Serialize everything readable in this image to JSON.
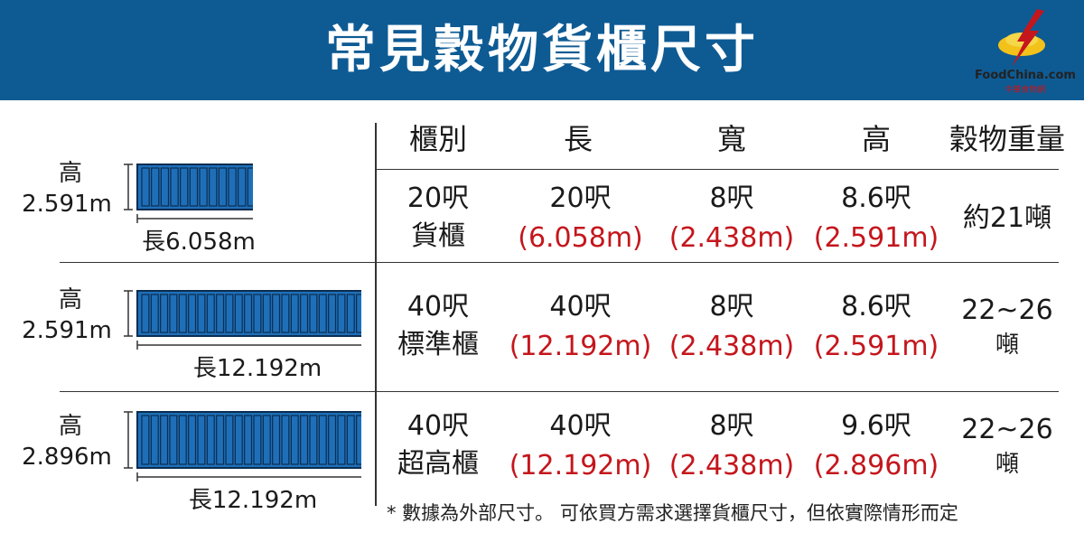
{
  "title": "常見穀物貨櫃尺寸",
  "logo": {
    "text": "FoodChina.com",
    "sub": "中華食物網",
    "icon": "lightning-logo-icon"
  },
  "colors": {
    "header_bg": "#0e5b94",
    "container_fill": "#1f6fb8",
    "container_stroke": "#0b2d50",
    "accent_red": "#c4161c"
  },
  "headers": {
    "type": "櫃別",
    "length": "長",
    "width": "寬",
    "height": "高",
    "weight": "穀物重量"
  },
  "rows": [
    {
      "type_line1": "20呎",
      "type_line2": "貨櫃",
      "length": "20呎",
      "length_m": "(6.058m)",
      "width": "8呎",
      "width_m": "(2.438m)",
      "height": "8.6呎",
      "height_m": "(2.591m)",
      "weight_line1": "約21噸",
      "weight_line2": "",
      "diagram": {
        "height_label": "高",
        "height_value": "2.591m",
        "length_label": "長6.058m",
        "slats": 12
      }
    },
    {
      "type_line1": "40呎",
      "type_line2": "標準櫃",
      "length": "40呎",
      "length_m": "(12.192m)",
      "width": "8呎",
      "width_m": "(2.438m)",
      "height": "8.6呎",
      "height_m": "(2.591m)",
      "weight_line1": "22~26",
      "weight_line2": "噸",
      "diagram": {
        "height_label": "高",
        "height_value": "2.591m",
        "length_label": "長12.192m",
        "slats": 24
      }
    },
    {
      "type_line1": "40呎",
      "type_line2": "超高櫃",
      "length": "40呎",
      "length_m": "(12.192m)",
      "width": "8呎",
      "width_m": "(2.438m)",
      "height": "9.6呎",
      "height_m": "(2.896m)",
      "weight_line1": "22~26",
      "weight_line2": "噸",
      "diagram": {
        "height_label": "高",
        "height_value": "2.896m",
        "length_label": "長12.192m",
        "slats": 24
      }
    }
  ],
  "note": "* 數據為外部尺寸。 可依買方需求選擇貨櫃尺寸，但依實際情形而定"
}
